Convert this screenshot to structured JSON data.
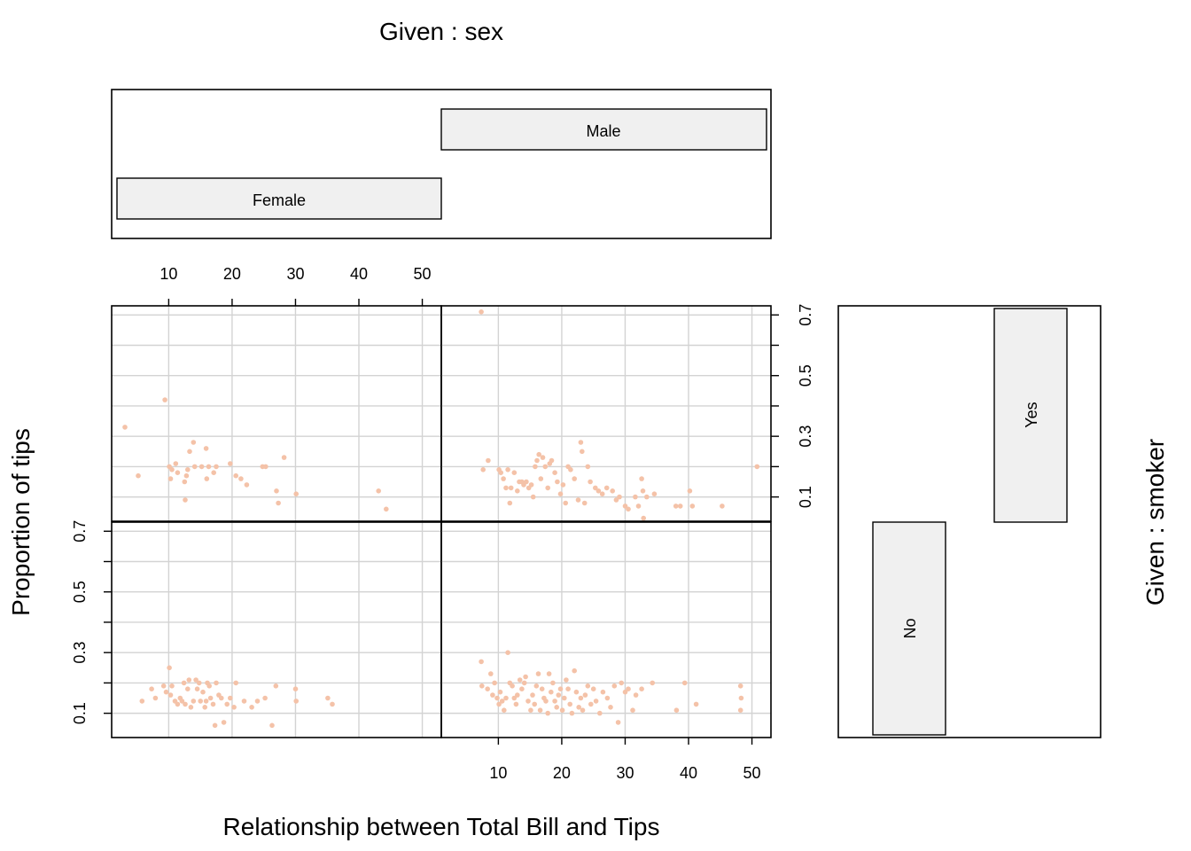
{
  "chart_data": {
    "type": "scatter",
    "title": "",
    "xlabel": "Relationship between Total Bill and Tips",
    "ylabel": "Proportion of tips",
    "xlim": [
      1,
      53
    ],
    "ylim": [
      0.02,
      0.73
    ],
    "x_ticks": [
      10,
      20,
      30,
      40,
      50
    ],
    "y_ticks": [
      0.1,
      0.3,
      0.5,
      0.7
    ],
    "y_minor_ticks": [
      0.1,
      0.2,
      0.3,
      0.4,
      0.5,
      0.6,
      0.7
    ],
    "point_color": "#f4c2a8",
    "grid": true,
    "given_sex": {
      "label": "Given : sex",
      "levels": [
        "Female",
        "Male"
      ]
    },
    "given_smoker": {
      "label": "Given : smoker",
      "levels": [
        "No",
        "Yes"
      ]
    },
    "panels": [
      {
        "sex": "Female",
        "smoker": "No",
        "points": [
          [
            5.8,
            0.14
          ],
          [
            7.3,
            0.18
          ],
          [
            7.9,
            0.15
          ],
          [
            9.2,
            0.19
          ],
          [
            9.6,
            0.17
          ],
          [
            10.1,
            0.25
          ],
          [
            10.3,
            0.16
          ],
          [
            10.5,
            0.19
          ],
          [
            11.0,
            0.14
          ],
          [
            11.4,
            0.13
          ],
          [
            11.8,
            0.15
          ],
          [
            12.1,
            0.14
          ],
          [
            12.4,
            0.2
          ],
          [
            12.6,
            0.13
          ],
          [
            13.0,
            0.18
          ],
          [
            13.2,
            0.21
          ],
          [
            13.5,
            0.12
          ],
          [
            13.9,
            0.14
          ],
          [
            14.3,
            0.21
          ],
          [
            14.5,
            0.18
          ],
          [
            14.8,
            0.2
          ],
          [
            15.0,
            0.14
          ],
          [
            15.4,
            0.17
          ],
          [
            15.7,
            0.12
          ],
          [
            15.9,
            0.14
          ],
          [
            16.1,
            0.2
          ],
          [
            16.4,
            0.19
          ],
          [
            16.6,
            0.15
          ],
          [
            17.0,
            0.13
          ],
          [
            17.3,
            0.06
          ],
          [
            17.5,
            0.2
          ],
          [
            17.9,
            0.16
          ],
          [
            18.3,
            0.15
          ],
          [
            18.7,
            0.07
          ],
          [
            19.2,
            0.13
          ],
          [
            19.7,
            0.15
          ],
          [
            20.3,
            0.12
          ],
          [
            20.6,
            0.2
          ],
          [
            21.9,
            0.14
          ],
          [
            23.1,
            0.12
          ],
          [
            24.0,
            0.14
          ],
          [
            25.2,
            0.15
          ],
          [
            26.3,
            0.06
          ],
          [
            26.9,
            0.19
          ],
          [
            30.0,
            0.18
          ],
          [
            30.1,
            0.14
          ],
          [
            35.1,
            0.15
          ],
          [
            35.8,
            0.13
          ]
        ]
      },
      {
        "sex": "Male",
        "smoker": "No",
        "points": [
          [
            7.3,
            0.27
          ],
          [
            7.4,
            0.19
          ],
          [
            8.3,
            0.18
          ],
          [
            8.8,
            0.23
          ],
          [
            9.1,
            0.16
          ],
          [
            9.4,
            0.2
          ],
          [
            9.8,
            0.15
          ],
          [
            10.1,
            0.13
          ],
          [
            10.3,
            0.17
          ],
          [
            10.6,
            0.14
          ],
          [
            10.9,
            0.11
          ],
          [
            11.2,
            0.15
          ],
          [
            11.5,
            0.3
          ],
          [
            11.8,
            0.2
          ],
          [
            12.2,
            0.19
          ],
          [
            12.5,
            0.15
          ],
          [
            12.8,
            0.13
          ],
          [
            13.0,
            0.16
          ],
          [
            13.4,
            0.21
          ],
          [
            13.7,
            0.18
          ],
          [
            14.1,
            0.2
          ],
          [
            14.3,
            0.22
          ],
          [
            14.7,
            0.14
          ],
          [
            15.1,
            0.11
          ],
          [
            15.4,
            0.16
          ],
          [
            15.7,
            0.13
          ],
          [
            16.0,
            0.19
          ],
          [
            16.3,
            0.23
          ],
          [
            16.6,
            0.11
          ],
          [
            16.9,
            0.18
          ],
          [
            17.2,
            0.15
          ],
          [
            17.5,
            0.14
          ],
          [
            17.8,
            0.1
          ],
          [
            18.0,
            0.23
          ],
          [
            18.3,
            0.17
          ],
          [
            18.6,
            0.2
          ],
          [
            18.9,
            0.14
          ],
          [
            19.2,
            0.12
          ],
          [
            19.5,
            0.16
          ],
          [
            19.8,
            0.18
          ],
          [
            20.1,
            0.11
          ],
          [
            20.4,
            0.15
          ],
          [
            20.7,
            0.21
          ],
          [
            21.0,
            0.18
          ],
          [
            21.3,
            0.13
          ],
          [
            21.6,
            0.1
          ],
          [
            22.0,
            0.24
          ],
          [
            22.3,
            0.17
          ],
          [
            22.7,
            0.12
          ],
          [
            23.0,
            0.15
          ],
          [
            23.3,
            0.11
          ],
          [
            23.7,
            0.16
          ],
          [
            24.1,
            0.19
          ],
          [
            24.6,
            0.13
          ],
          [
            25.0,
            0.18
          ],
          [
            25.4,
            0.14
          ],
          [
            26.0,
            0.1
          ],
          [
            26.5,
            0.17
          ],
          [
            27.2,
            0.15
          ],
          [
            27.7,
            0.12
          ],
          [
            28.3,
            0.19
          ],
          [
            28.9,
            0.07
          ],
          [
            29.4,
            0.2
          ],
          [
            30.0,
            0.17
          ],
          [
            30.5,
            0.18
          ],
          [
            31.2,
            0.11
          ],
          [
            31.7,
            0.16
          ],
          [
            32.6,
            0.18
          ],
          [
            34.3,
            0.2
          ],
          [
            38.1,
            0.11
          ],
          [
            39.4,
            0.2
          ],
          [
            41.2,
            0.13
          ],
          [
            48.2,
            0.19
          ],
          [
            48.3,
            0.15
          ],
          [
            48.2,
            0.11
          ]
        ]
      },
      {
        "sex": "Female",
        "smoker": "Yes",
        "points": [
          [
            3.1,
            0.33
          ],
          [
            5.2,
            0.17
          ],
          [
            9.4,
            0.42
          ],
          [
            10.1,
            0.2
          ],
          [
            10.3,
            0.16
          ],
          [
            10.5,
            0.19
          ],
          [
            11.1,
            0.21
          ],
          [
            11.4,
            0.18
          ],
          [
            12.6,
            0.09
          ],
          [
            12.8,
            0.17
          ],
          [
            12.5,
            0.15
          ],
          [
            13.0,
            0.19
          ],
          [
            13.3,
            0.25
          ],
          [
            13.9,
            0.28
          ],
          [
            14.1,
            0.2
          ],
          [
            15.2,
            0.2
          ],
          [
            15.9,
            0.26
          ],
          [
            16.0,
            0.16
          ],
          [
            16.3,
            0.2
          ],
          [
            17.1,
            0.18
          ],
          [
            17.5,
            0.2
          ],
          [
            19.7,
            0.21
          ],
          [
            20.6,
            0.17
          ],
          [
            21.4,
            0.16
          ],
          [
            22.3,
            0.14
          ],
          [
            24.8,
            0.2
          ],
          [
            25.3,
            0.2
          ],
          [
            27.0,
            0.12
          ],
          [
            27.3,
            0.08
          ],
          [
            28.2,
            0.23
          ],
          [
            30.1,
            0.11
          ],
          [
            43.1,
            0.12
          ],
          [
            44.3,
            0.06
          ]
        ]
      },
      {
        "sex": "Male",
        "smoker": "Yes",
        "points": [
          [
            7.3,
            0.71
          ],
          [
            7.6,
            0.19
          ],
          [
            8.4,
            0.22
          ],
          [
            10.1,
            0.19
          ],
          [
            10.4,
            0.18
          ],
          [
            10.8,
            0.16
          ],
          [
            11.2,
            0.13
          ],
          [
            11.5,
            0.19
          ],
          [
            11.8,
            0.08
          ],
          [
            12.0,
            0.13
          ],
          [
            12.5,
            0.18
          ],
          [
            13.0,
            0.12
          ],
          [
            13.3,
            0.15
          ],
          [
            13.7,
            0.15
          ],
          [
            14.0,
            0.14
          ],
          [
            14.4,
            0.15
          ],
          [
            14.8,
            0.13
          ],
          [
            15.2,
            0.14
          ],
          [
            15.5,
            0.1
          ],
          [
            15.8,
            0.2
          ],
          [
            16.1,
            0.22
          ],
          [
            16.4,
            0.24
          ],
          [
            16.7,
            0.16
          ],
          [
            17.0,
            0.23
          ],
          [
            17.4,
            0.2
          ],
          [
            17.8,
            0.13
          ],
          [
            18.1,
            0.21
          ],
          [
            18.4,
            0.22
          ],
          [
            18.9,
            0.18
          ],
          [
            19.3,
            0.15
          ],
          [
            19.8,
            0.11
          ],
          [
            20.2,
            0.14
          ],
          [
            20.6,
            0.08
          ],
          [
            21.0,
            0.2
          ],
          [
            21.4,
            0.19
          ],
          [
            22.0,
            0.16
          ],
          [
            22.6,
            0.09
          ],
          [
            23.0,
            0.28
          ],
          [
            23.2,
            0.25
          ],
          [
            23.6,
            0.08
          ],
          [
            24.1,
            0.2
          ],
          [
            24.5,
            0.15
          ],
          [
            25.3,
            0.13
          ],
          [
            25.8,
            0.12
          ],
          [
            26.4,
            0.11
          ],
          [
            27.1,
            0.13
          ],
          [
            28.0,
            0.12
          ],
          [
            28.6,
            0.09
          ],
          [
            29.1,
            0.1
          ],
          [
            30.0,
            0.07
          ],
          [
            30.5,
            0.06
          ],
          [
            31.6,
            0.1
          ],
          [
            32.1,
            0.07
          ],
          [
            32.6,
            0.16
          ],
          [
            32.8,
            0.12
          ],
          [
            32.9,
            0.03
          ],
          [
            33.4,
            0.1
          ],
          [
            34.6,
            0.11
          ],
          [
            38.0,
            0.07
          ],
          [
            38.7,
            0.07
          ],
          [
            40.2,
            0.12
          ],
          [
            40.6,
            0.07
          ],
          [
            45.3,
            0.07
          ],
          [
            50.8,
            0.2
          ]
        ]
      }
    ]
  }
}
